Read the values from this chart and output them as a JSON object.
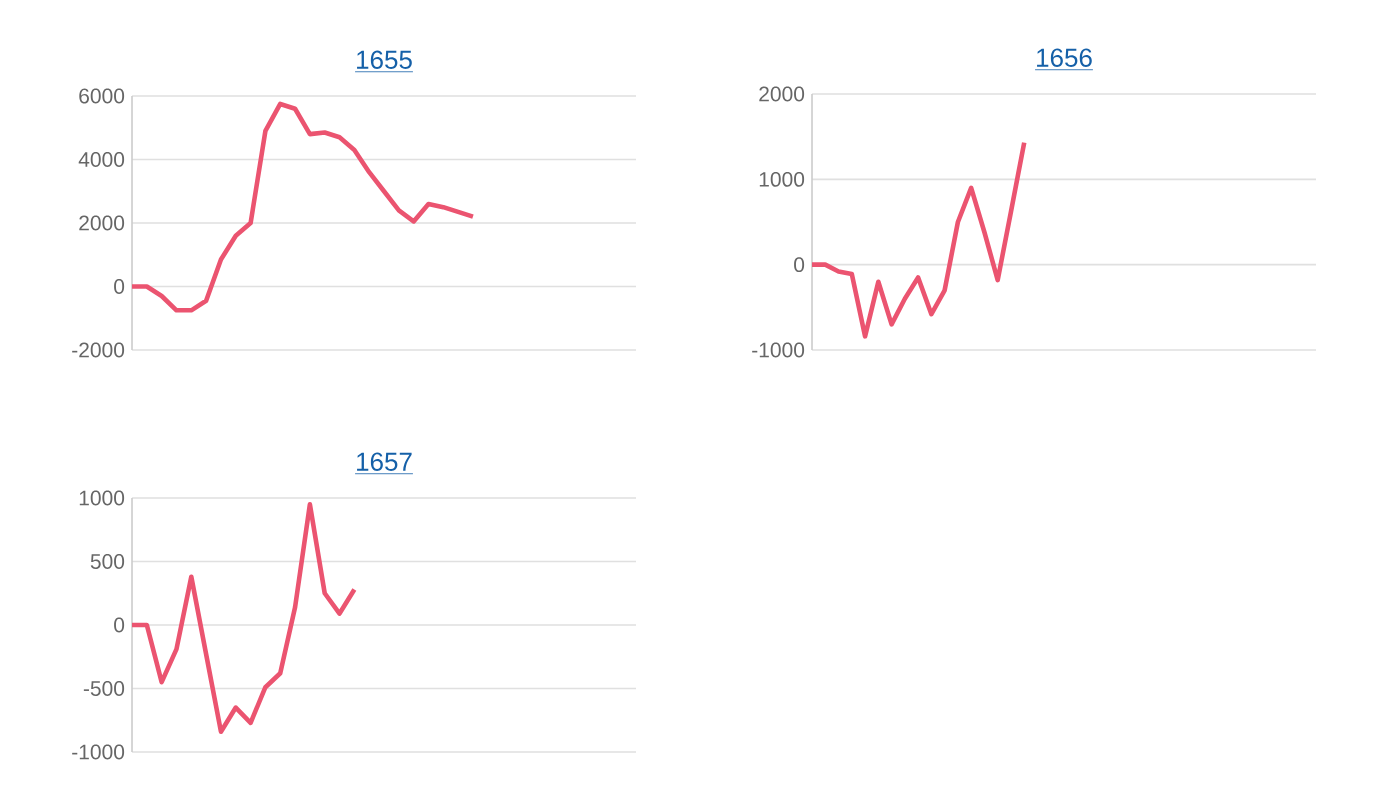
{
  "chart_data": [
    {
      "type": "line",
      "title": "1655",
      "categories": [
        null,
        null,
        null,
        null,
        null,
        null,
        null,
        null,
        null,
        null,
        null,
        null,
        null,
        null,
        null,
        null,
        null,
        null,
        null,
        null,
        null,
        null,
        null,
        null,
        null,
        null,
        null,
        null,
        null,
        null,
        null,
        null,
        null,
        null,
        null
      ],
      "series": [
        {
          "color": "#eb5470",
          "values": [
            0,
            0,
            -300,
            -750,
            -750,
            -450,
            850,
            1600,
            2000,
            4900,
            5750,
            5600,
            4800,
            4850,
            4700,
            4300,
            3600,
            3000,
            2400,
            2050,
            2600,
            2500,
            2350,
            2200,
            null,
            null,
            null,
            null,
            null,
            null,
            null,
            null,
            null,
            null,
            null
          ]
        }
      ],
      "ylim": [
        -2000,
        6000
      ],
      "yticks": [
        -2000,
        0,
        2000,
        4000,
        6000
      ],
      "grid": "y",
      "tick_labels": "y",
      "marker": "none",
      "line_style": "solid"
    },
    {
      "type": "line",
      "title": "1656",
      "categories": [
        null,
        null,
        null,
        null,
        null,
        null,
        null,
        null,
        null,
        null,
        null,
        null,
        null,
        null,
        null,
        null,
        null,
        null,
        null,
        null,
        null,
        null,
        null,
        null,
        null,
        null,
        null,
        null,
        null,
        null,
        null,
        null,
        null,
        null,
        null,
        null,
        null,
        null,
        null
      ],
      "series": [
        {
          "color": "#eb5470",
          "values": [
            0,
            0,
            -80,
            -110,
            -840,
            -200,
            -700,
            -400,
            -150,
            -580,
            -300,
            500,
            900,
            380,
            -180,
            620,
            1430,
            null,
            null,
            null,
            null,
            null,
            null,
            null,
            null,
            null,
            null,
            null,
            null,
            null,
            null,
            null,
            null,
            null,
            null,
            null,
            null,
            null,
            null
          ]
        }
      ],
      "ylim": [
        -1000,
        2000
      ],
      "yticks": [
        -1000,
        0,
        1000,
        2000
      ],
      "grid": "y",
      "tick_labels": "y",
      "marker": "none",
      "line_style": "solid"
    },
    {
      "type": "line",
      "title": "1657",
      "categories": [
        null,
        null,
        null,
        null,
        null,
        null,
        null,
        null,
        null,
        null,
        null,
        null,
        null,
        null,
        null,
        null,
        null,
        null,
        null,
        null,
        null,
        null,
        null,
        null,
        null,
        null,
        null,
        null,
        null,
        null,
        null,
        null,
        null,
        null,
        null
      ],
      "series": [
        {
          "color": "#eb5470",
          "values": [
            0,
            0,
            -450,
            -190,
            380,
            -230,
            -840,
            -650,
            -770,
            -490,
            -380,
            140,
            950,
            250,
            90,
            280,
            null,
            null,
            null,
            null,
            null,
            null,
            null,
            null,
            null,
            null,
            null,
            null,
            null,
            null,
            null,
            null,
            null,
            null,
            null
          ]
        }
      ],
      "ylim": [
        -1000,
        1000
      ],
      "yticks": [
        -1000,
        -500,
        0,
        500,
        1000
      ],
      "grid": "y",
      "tick_labels": "y",
      "marker": "none",
      "line_style": "solid"
    }
  ]
}
